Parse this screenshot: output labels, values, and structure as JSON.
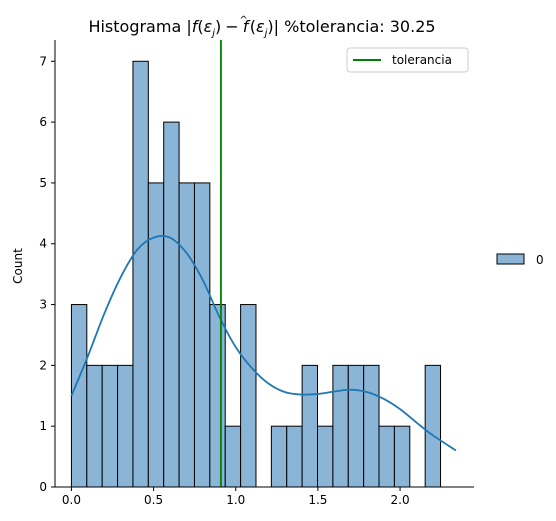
{
  "chart_data": {
    "type": "bar",
    "title_parts": {
      "prefix": "Histograma |",
      "f1": "f",
      "eps1": "ε",
      "sub1": "j",
      "mid": ")",
      "minus": "−",
      "f2": "f",
      "hat": "^",
      "eps2": "ε",
      "sub2": "j",
      "suffix": ")| %tolerancia: 30.25"
    },
    "xlabel": "",
    "ylabel": "Count",
    "xlim": [
      -0.1,
      2.45
    ],
    "ylim": [
      0,
      7.35
    ],
    "xticks": [
      0.0,
      0.5,
      1.0,
      1.5,
      2.0
    ],
    "xtick_labels": [
      "0.0",
      "0.5",
      "1.0",
      "1.5",
      "2.0"
    ],
    "yticks": [
      0,
      1,
      2,
      3,
      4,
      5,
      6,
      7
    ],
    "ytick_labels": [
      "0",
      "1",
      "2",
      "3",
      "4",
      "5",
      "6",
      "7"
    ],
    "bin_start": 0.0,
    "bin_width": 0.0936,
    "counts": [
      3,
      2,
      2,
      2,
      7,
      5,
      6,
      5,
      5,
      3,
      1,
      3,
      0,
      1,
      1,
      2,
      1,
      2,
      2,
      2,
      1,
      1,
      0,
      2
    ],
    "kde": {
      "x": [
        0.0,
        0.1,
        0.2,
        0.3,
        0.4,
        0.5,
        0.6,
        0.7,
        0.8,
        0.9,
        1.0,
        1.1,
        1.2,
        1.3,
        1.4,
        1.5,
        1.6,
        1.7,
        1.8,
        1.9,
        2.0,
        2.1,
        2.2,
        2.34
      ],
      "y": [
        1.5,
        2.15,
        2.85,
        3.45,
        3.9,
        4.1,
        4.1,
        3.85,
        3.4,
        2.8,
        2.3,
        1.95,
        1.7,
        1.56,
        1.52,
        1.53,
        1.57,
        1.6,
        1.56,
        1.45,
        1.28,
        1.06,
        0.85,
        0.6
      ]
    },
    "tolerance": 0.91,
    "series": [
      {
        "name": "0",
        "color": "#1f77b4",
        "fill": "#8ab5d7"
      }
    ],
    "legend_inner": {
      "label": "tolerancia",
      "color": "#008000",
      "position": "top-right"
    },
    "legend_outer": {
      "label": "0",
      "position": "right"
    },
    "grid": false
  }
}
